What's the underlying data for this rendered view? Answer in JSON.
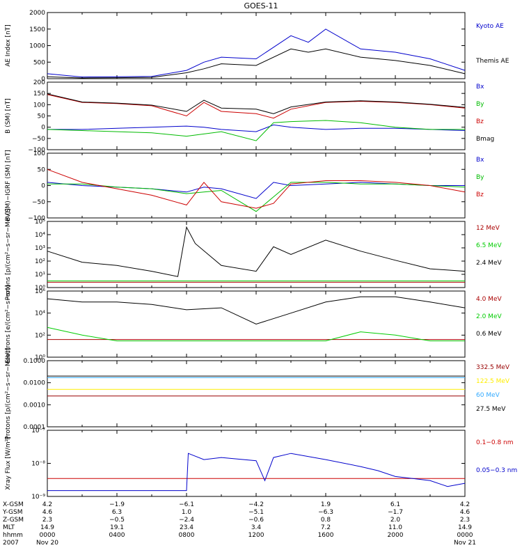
{
  "title": "GOES-11",
  "chart_data": [
    {
      "type": "line",
      "ylabel": "AE Index [nT]",
      "ylim": [
        0,
        2000
      ],
      "yticks": [
        "0",
        "500",
        "1000",
        "1500",
        "2000"
      ],
      "x": [
        0,
        2,
        4,
        6,
        8,
        9,
        10,
        12,
        14,
        15,
        16,
        18,
        20,
        22,
        24
      ],
      "series": [
        {
          "name": "Kyoto AE",
          "color": "#0000cc",
          "values": [
            150,
            50,
            60,
            70,
            250,
            500,
            650,
            600,
            1300,
            1100,
            1500,
            900,
            800,
            600,
            250
          ]
        },
        {
          "name": "Themis AE",
          "color": "#000000",
          "values": [
            60,
            20,
            30,
            40,
            180,
            300,
            450,
            400,
            900,
            800,
            900,
            650,
            550,
            400,
            150
          ]
        }
      ]
    },
    {
      "type": "line",
      "ylabel": "B (SM) [nT]",
      "ylim": [
        -100,
        200
      ],
      "yticks": [
        "−100",
        "−50",
        "0",
        "50",
        "100",
        "150",
        "200"
      ],
      "x": [
        0,
        2,
        4,
        6,
        8,
        9,
        10,
        12,
        13,
        14,
        16,
        18,
        20,
        22,
        24
      ],
      "series": [
        {
          "name": "Bx",
          "color": "#0000cc",
          "values": [
            -10,
            -10,
            -5,
            0,
            5,
            0,
            -10,
            -20,
            10,
            0,
            -10,
            -5,
            -5,
            -10,
            -15
          ]
        },
        {
          "name": "By",
          "color": "#00bb00",
          "values": [
            -10,
            -15,
            -20,
            -25,
            -40,
            -30,
            -20,
            -60,
            20,
            25,
            30,
            20,
            0,
            -10,
            -10
          ]
        },
        {
          "name": "Bz",
          "color": "#cc0000",
          "values": [
            145,
            110,
            105,
            95,
            50,
            110,
            70,
            60,
            40,
            80,
            110,
            115,
            110,
            100,
            85
          ]
        },
        {
          "name": "Bmag",
          "color": "#000000",
          "values": [
            148,
            112,
            107,
            98,
            70,
            120,
            85,
            80,
            60,
            90,
            112,
            117,
            112,
            102,
            88
          ]
        }
      ]
    },
    {
      "type": "line",
      "ylabel": "B (SM)−IGRF (SM) [nT]",
      "ylim": [
        -100,
        100
      ],
      "yticks": [
        "−100",
        "−50",
        "0",
        "50",
        "100"
      ],
      "x": [
        0,
        2,
        4,
        6,
        8,
        9,
        10,
        12,
        13,
        14,
        16,
        18,
        20,
        22,
        24
      ],
      "series": [
        {
          "name": "Bx",
          "color": "#0000cc",
          "values": [
            10,
            0,
            -5,
            -10,
            -20,
            -5,
            -10,
            -40,
            10,
            0,
            5,
            10,
            5,
            0,
            0
          ]
        },
        {
          "name": "By",
          "color": "#00bb00",
          "values": [
            5,
            5,
            -5,
            -10,
            -25,
            -20,
            -15,
            -80,
            -35,
            10,
            10,
            5,
            5,
            0,
            -5
          ]
        },
        {
          "name": "Bz",
          "color": "#cc0000",
          "values": [
            50,
            10,
            -10,
            -30,
            -60,
            10,
            -50,
            -70,
            -55,
            5,
            15,
            15,
            10,
            0,
            -20
          ]
        }
      ]
    },
    {
      "type": "line",
      "ylabel": "Protons [p/(cm²−s−sr−MeV)]",
      "yscale": "log",
      "ylim": [
        0.1,
        100000.0
      ],
      "yticks": [
        "10⁰",
        "10¹",
        "10²",
        "10³",
        "10⁴",
        "10⁵"
      ],
      "x": [
        0,
        2,
        4,
        6,
        7.5,
        8,
        8.5,
        10,
        12,
        13,
        14,
        16,
        18,
        20,
        22,
        24
      ],
      "series": [
        {
          "name": "12 MeV",
          "color": "#aa0000",
          "values": [
            0.3,
            0.3,
            0.3,
            0.3,
            0.3,
            0.3,
            0.3,
            0.3,
            0.3,
            0.3,
            0.3,
            0.3,
            0.3,
            0.3,
            0.3,
            0.3
          ]
        },
        {
          "name": "6.5 MeV",
          "color": "#00cc00",
          "values": [
            0.4,
            0.4,
            0.4,
            0.4,
            0.4,
            0.4,
            0.4,
            0.4,
            0.4,
            0.4,
            0.4,
            0.4,
            0.4,
            0.4,
            0.4,
            0.4
          ]
        },
        {
          "name": "2.4 MeV",
          "color": "#000000",
          "values": [
            200,
            20,
            10,
            3,
            1,
            30000,
            1000,
            10,
            3,
            500,
            100,
            2000,
            200,
            30,
            5,
            3
          ]
        }
      ]
    },
    {
      "type": "line",
      "ylabel": "Electrons [e/(cm²−s−sr)]",
      "yscale": "log",
      "ylim": [
        1.0,
        1000000.0
      ],
      "yticks": [
        "10⁰",
        "10²",
        "10⁴",
        "10⁶"
      ],
      "x": [
        0,
        2,
        4,
        6,
        8,
        10,
        12,
        14,
        16,
        18,
        20,
        22,
        24
      ],
      "series": [
        {
          "name": "4.0 MeV",
          "color": "#aa0000",
          "values": [
            40,
            40,
            40,
            40,
            40,
            40,
            40,
            40,
            40,
            40,
            40,
            40,
            40
          ]
        },
        {
          "name": "2.0 MeV",
          "color": "#00cc00",
          "values": [
            500,
            100,
            30,
            30,
            30,
            30,
            30,
            30,
            30,
            200,
            100,
            30,
            30
          ]
        },
        {
          "name": "0.6 MeV",
          "color": "#000000",
          "values": [
            200000,
            100000,
            100000,
            60000,
            20000,
            30000,
            1000,
            10000,
            100000,
            300000,
            300000,
            100000,
            30000
          ]
        }
      ]
    },
    {
      "type": "line",
      "ylabel": "Protons [p/(cm²−s−sr−MeV)]",
      "yscale": "log",
      "ylim": [
        0.0001,
        0.1
      ],
      "yticks": [
        "0.0001",
        "0.0010",
        "0.0100",
        "0.1000"
      ],
      "x": [
        0,
        24
      ],
      "series": [
        {
          "name": "332.5 MeV",
          "color": "#990000",
          "values": [
            0.0025,
            0.0025
          ]
        },
        {
          "name": "122.5 MeV",
          "color": "#ffee00",
          "values": [
            0.005,
            0.005
          ]
        },
        {
          "name": "60 MeV",
          "color": "#33aaff",
          "values": [
            0.017,
            0.017
          ]
        },
        {
          "name": "27.5 MeV",
          "color": "#000000",
          "values": [
            0.02,
            0.02
          ]
        }
      ]
    },
    {
      "type": "line",
      "ylabel": "Xray Flux [W/m²]",
      "yscale": "log",
      "ylim": [
        1e-09,
        1e-07
      ],
      "yticks": [
        "10⁻⁹",
        "10⁻⁸",
        "10⁻⁷"
      ],
      "x": [
        0,
        2,
        4,
        6,
        8,
        8.1,
        9,
        10,
        12,
        12.5,
        13,
        14,
        16,
        18,
        19,
        20,
        21,
        22,
        23,
        24
      ],
      "series": [
        {
          "name": "0.1−0.8 nm",
          "color": "#cc0000",
          "values": [
            3.5e-09,
            3.5e-09,
            3.5e-09,
            3.5e-09,
            3.5e-09,
            3.5e-09,
            3.5e-09,
            3.5e-09,
            3.5e-09,
            3.5e-09,
            3.5e-09,
            3.5e-09,
            3.5e-09,
            3.5e-09,
            3.5e-09,
            3.5e-09,
            3.5e-09,
            3.5e-09,
            3.5e-09,
            3.5e-09
          ]
        },
        {
          "name": "0.05−0.3 nm",
          "color": "#0000cc",
          "values": [
            1.5e-09,
            1.5e-09,
            1.5e-09,
            1.5e-09,
            1.5e-09,
            2e-08,
            1.3e-08,
            1.5e-08,
            1.2e-08,
            3e-09,
            1.5e-08,
            2e-08,
            1.3e-08,
            8e-09,
            6e-09,
            4e-09,
            3.5e-09,
            3e-09,
            2e-09,
            2.5e-09
          ]
        }
      ]
    }
  ],
  "axis_table": {
    "rows": [
      {
        "label": "X-GSM",
        "values": [
          "4.2",
          "−1.9",
          "−6.1",
          "−4.2",
          "1.9",
          "6.1",
          "4.2"
        ]
      },
      {
        "label": "Y-GSM",
        "values": [
          "4.6",
          "6.3",
          "1.0",
          "−5.1",
          "−6.3",
          "−1.7",
          "4.6"
        ]
      },
      {
        "label": "Z-GSM",
        "values": [
          "2.3",
          "−0.5",
          "−2.4",
          "−0.6",
          "0.8",
          "2.0",
          "2.3"
        ]
      },
      {
        "label": "MLT",
        "values": [
          "14.9",
          "19.1",
          "23.4",
          "3.4",
          "7.2",
          "11.0",
          "14.9"
        ]
      },
      {
        "label": "hhmm",
        "values": [
          "0000",
          "0400",
          "0800",
          "1200",
          "1600",
          "2000",
          "0000"
        ]
      },
      {
        "label": "2007",
        "values": [
          "Nov 20",
          "",
          "",
          "",
          "",
          "",
          "Nov 21"
        ]
      }
    ]
  }
}
